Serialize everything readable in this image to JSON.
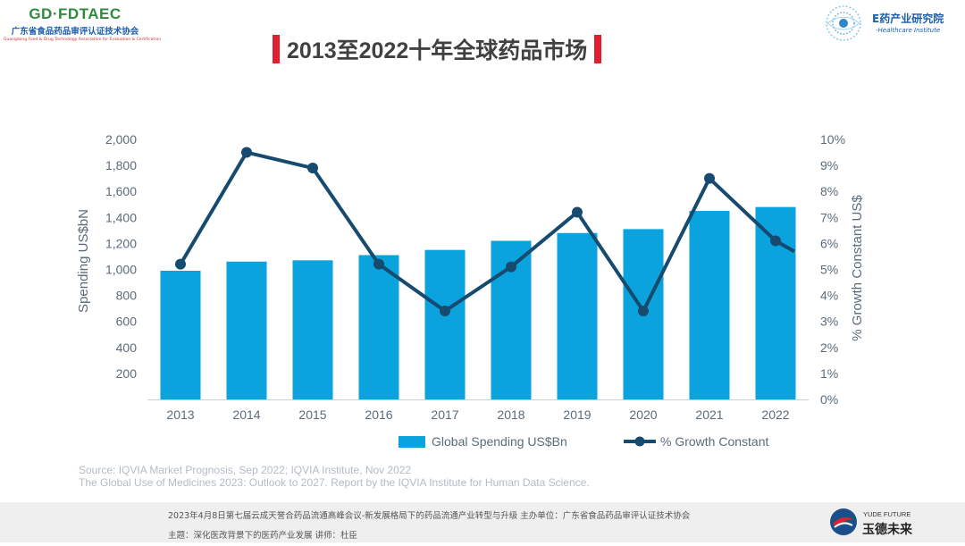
{
  "header": {
    "left_logo_brand": "GD·FDTAEC",
    "left_logo_cn": "广东省食品药品审评认证技术协会",
    "left_logo_en": "Guangdong Food & Drug Technology Association for Evaluation & Certification",
    "right_logo_cn": "E药产业研究院",
    "right_logo_en": "-Healthcare Institute",
    "title": "2013至2022十年全球药品市场"
  },
  "colors": {
    "bar": "#0aa3dd",
    "line": "#164a6e",
    "axis_text": "#5b6b7b",
    "accent_red": "#e0202e"
  },
  "chart_data": {
    "type": "bar",
    "categories": [
      "2013",
      "2014",
      "2015",
      "2016",
      "2017",
      "2018",
      "2019",
      "2020",
      "2021",
      "2022"
    ],
    "series": [
      {
        "name": "Global Spending US$Bn",
        "type": "bar",
        "axis": "left",
        "values": [
          990,
          1060,
          1070,
          1110,
          1150,
          1220,
          1280,
          1310,
          1450,
          1480
        ]
      },
      {
        "name": "% Growth Constant",
        "type": "line",
        "axis": "right",
        "values": [
          5.2,
          9.5,
          8.9,
          5.2,
          3.4,
          5.1,
          7.2,
          3.4,
          8.5,
          6.1
        ]
      }
    ],
    "ylabel": "Spending US$bN",
    "y2label": "% Growth Constant US$",
    "yticks": [
      "200",
      "400",
      "600",
      "800",
      "1,000",
      "1,200",
      "1,400",
      "1,600",
      "1,800",
      "2,000"
    ],
    "y2ticks": [
      "0%",
      "1%",
      "2%",
      "3%",
      "4%",
      "5%",
      "6%",
      "7%",
      "8%",
      "9%",
      "10%"
    ],
    "ylim": [
      0,
      2000
    ],
    "y2lim": [
      0,
      10
    ],
    "legend": [
      "Global Spending US$Bn",
      "% Growth Constant"
    ],
    "legend_position": "bottom",
    "grid": false
  },
  "source": {
    "line1": "Source: IQVIA Market Prognosis, Sep 2022; IQVIA Institute, Nov 2022",
    "line2": "The Global Use of Medicines 2023: Outlook to 2027. Report by the IQVIA Institute for Human Data Science."
  },
  "footer": {
    "line1": "2023年4月8日第七届云成天誉合药品流通高峰会议-新发展格局下的药品流通产业转型与升级      主办单位：广东省食品药品审评认证技术协会",
    "line2": "主题：深化医改背景下的医药产业发展  讲师：杜臣",
    "logo_en": "YUDE FUTURE",
    "logo_cn": "玉德未来"
  }
}
